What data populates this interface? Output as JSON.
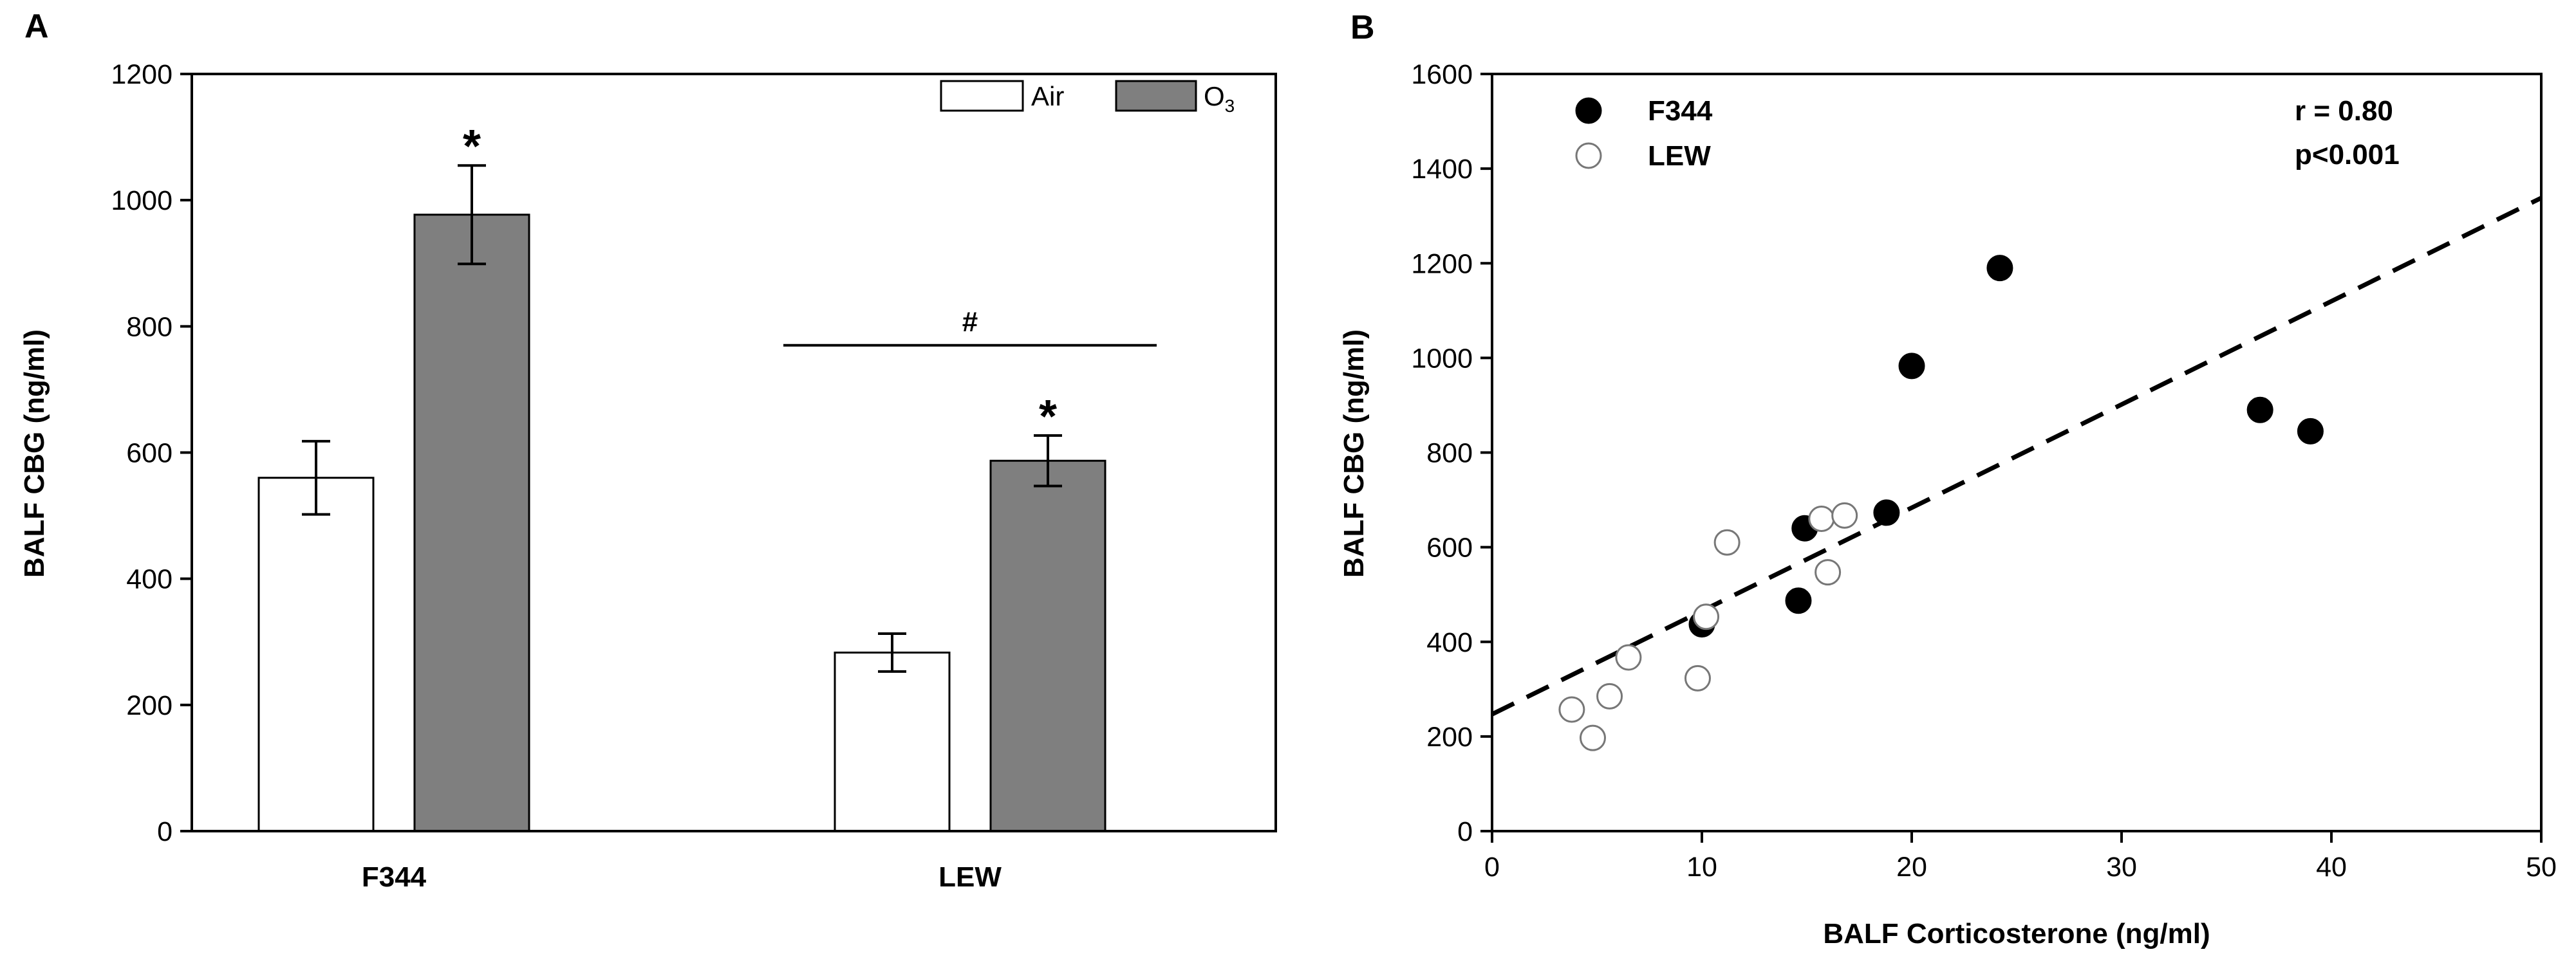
{
  "chart_data": [
    {
      "panel": "A",
      "type": "bar",
      "ylabel": "BALF CBG (ng/ml)",
      "xlabel": "",
      "ylim": [
        0,
        1200
      ],
      "yticks": [
        0,
        200,
        400,
        600,
        800,
        1000,
        1200
      ],
      "categories": [
        "F344",
        "LEW"
      ],
      "series": [
        {
          "name": "Air",
          "sub": "",
          "color": "#ffffff",
          "values": [
            560,
            283
          ],
          "errors": [
            58,
            30
          ]
        },
        {
          "name": "O",
          "sub": "3",
          "color": "#7f7f7f",
          "values": [
            977,
            587
          ],
          "errors": [
            78,
            40
          ]
        }
      ],
      "annotations": {
        "significance": [
          {
            "category": "F344",
            "series": "O3",
            "symbol": "*"
          },
          {
            "category": "LEW",
            "series": "O3",
            "symbol": "*"
          }
        ],
        "group_bracket": {
          "category": "LEW",
          "symbol": "#",
          "value": 770
        }
      }
    },
    {
      "panel": "B",
      "type": "scatter",
      "xlabel": "BALF Corticosterone (ng/ml)",
      "ylabel": "BALF CBG (ng/ml)",
      "xlim": [
        0,
        50
      ],
      "ylim": [
        0,
        1600
      ],
      "xticks": [
        0,
        10,
        20,
        30,
        40,
        50
      ],
      "yticks": [
        0,
        200,
        400,
        600,
        800,
        1000,
        1200,
        1400,
        1600
      ],
      "series": [
        {
          "name": "F344",
          "marker": "filled",
          "points": [
            [
              10.0,
              437
            ],
            [
              14.6,
              487
            ],
            [
              14.9,
              640
            ],
            [
              18.8,
              673
            ],
            [
              20.0,
              983
            ],
            [
              24.2,
              1190
            ],
            [
              36.6,
              890
            ],
            [
              39.0,
              845
            ]
          ]
        },
        {
          "name": "LEW",
          "marker": "open",
          "points": [
            [
              3.8,
              257
            ],
            [
              4.8,
              197
            ],
            [
              5.6,
              285
            ],
            [
              6.5,
              367
            ],
            [
              9.8,
              323
            ],
            [
              10.2,
              453
            ],
            [
              11.2,
              610
            ],
            [
              15.7,
              660
            ],
            [
              16.0,
              547
            ],
            [
              16.8,
              667
            ]
          ]
        }
      ],
      "regression": {
        "x": [
          0,
          50
        ],
        "y": [
          247,
          1338
        ],
        "style": "dashed"
      },
      "stats": {
        "r_text": "r = 0.80",
        "p_text": "p<0.001"
      }
    }
  ]
}
